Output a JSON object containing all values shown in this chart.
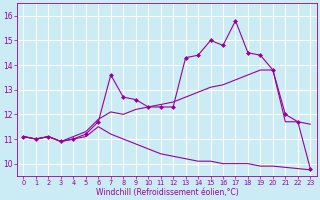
{
  "xlabel": "Windchill (Refroidissement éolien,°C)",
  "x": [
    0,
    1,
    2,
    3,
    4,
    5,
    6,
    7,
    8,
    9,
    10,
    11,
    12,
    13,
    14,
    15,
    16,
    17,
    18,
    19,
    20,
    21,
    22,
    23
  ],
  "line1": [
    11.1,
    11.0,
    11.1,
    10.9,
    11.0,
    11.2,
    11.7,
    13.6,
    12.7,
    12.6,
    12.3,
    12.3,
    12.3,
    14.3,
    14.4,
    15.0,
    14.8,
    15.8,
    14.5,
    14.4,
    13.8,
    12.0,
    11.7,
    9.8
  ],
  "line2": [
    11.1,
    11.0,
    11.1,
    10.9,
    11.1,
    11.3,
    11.8,
    12.1,
    12.0,
    12.2,
    12.3,
    12.4,
    12.5,
    12.7,
    12.9,
    13.1,
    13.2,
    13.4,
    13.6,
    13.8,
    13.8,
    11.7,
    11.7,
    11.6
  ],
  "line3": [
    11.1,
    11.0,
    11.1,
    10.9,
    11.0,
    11.1,
    11.5,
    11.2,
    11.0,
    10.8,
    10.6,
    10.4,
    10.3,
    10.2,
    10.1,
    10.1,
    10.0,
    10.0,
    10.0,
    9.9,
    9.9,
    9.85,
    9.8,
    9.75
  ],
  "color": "#990099",
  "bg_color": "#cbecf5",
  "grid_color": "#ffffff",
  "ylim": [
    9.5,
    16.5
  ],
  "xlim": [
    -0.5,
    23.5
  ],
  "yticks": [
    10,
    11,
    12,
    13,
    14,
    15,
    16
  ],
  "xticks": [
    0,
    1,
    2,
    3,
    4,
    5,
    6,
    7,
    8,
    9,
    10,
    11,
    12,
    13,
    14,
    15,
    16,
    17,
    18,
    19,
    20,
    21,
    22,
    23
  ]
}
